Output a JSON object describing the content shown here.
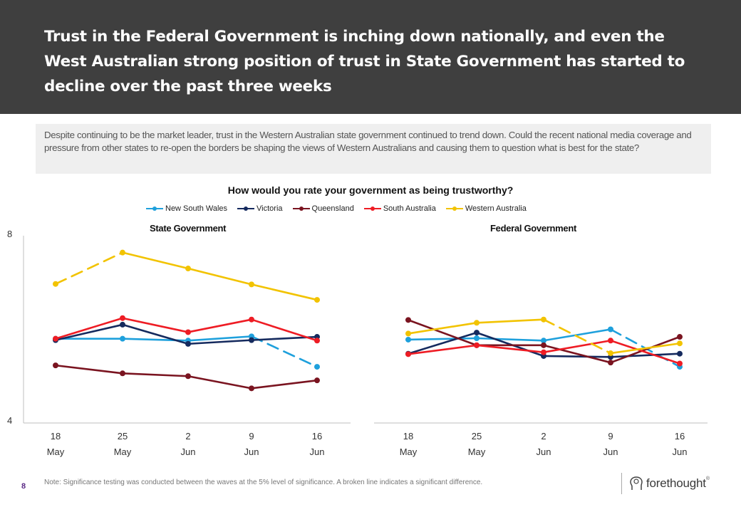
{
  "header": {
    "title": "Trust in the Federal Government is inching down nationally, and even the West Australian strong position of trust in State Government has started to decline over the past three weeks"
  },
  "callout": {
    "text": "Despite continuing to be the market leader, trust in the Western Australian state government continued to trend down.   Could the recent national media coverage and pressure from other states to re-open the borders be shaping the views of Western Australians and causing them to question what is best for the state?"
  },
  "footer": {
    "page_number": "8",
    "note": "Note: Significance testing was conducted between the waves at the 5% level of significance. A broken line indicates a significant difference.",
    "brand": "forethought",
    "brand_mark": "®"
  },
  "chart_data": {
    "type": "line",
    "title": "How would you rate your government as being trustworthy?",
    "ylim": [
      4,
      8
    ],
    "y_ticks": [
      "4",
      "8"
    ],
    "x_ticks": [
      {
        "day": "18",
        "month": "May"
      },
      {
        "day": "25",
        "month": "May"
      },
      {
        "day": "2",
        "month": "Jun"
      },
      {
        "day": "9",
        "month": "Jun"
      },
      {
        "day": "16",
        "month": "Jun"
      }
    ],
    "legend_position": "top-center",
    "series_meta": [
      {
        "name": "New South Wales",
        "color": "#1ea0dc"
      },
      {
        "name": "Victoria",
        "color": "#152a5e"
      },
      {
        "name": "Queensland",
        "color": "#7a1420"
      },
      {
        "name": "South Australia",
        "color": "#ee1c24"
      },
      {
        "name": "Western Australia",
        "color": "#f2c300"
      }
    ],
    "panels": [
      {
        "title": "State Government",
        "series": [
          {
            "name": "New South Wales",
            "values": [
              5.8,
              5.8,
              5.76,
              5.85,
              5.2
            ],
            "dashed": [
              false,
              false,
              false,
              true
            ]
          },
          {
            "name": "Victoria",
            "values": [
              5.77,
              6.1,
              5.69,
              5.77,
              5.84
            ],
            "dashed": [
              false,
              false,
              false,
              false
            ]
          },
          {
            "name": "Queensland",
            "values": [
              5.23,
              5.06,
              5.0,
              4.74,
              4.91
            ],
            "dashed": [
              false,
              false,
              false,
              false
            ]
          },
          {
            "name": "South Australia",
            "values": [
              5.8,
              6.24,
              5.94,
              6.21,
              5.76
            ],
            "dashed": [
              false,
              false,
              false,
              false
            ]
          },
          {
            "name": "Western Australia",
            "values": [
              6.97,
              7.64,
              7.3,
              6.96,
              6.63
            ],
            "dashed": [
              true,
              false,
              false,
              false
            ]
          }
        ]
      },
      {
        "title": "Federal Government",
        "series": [
          {
            "name": "New South Wales",
            "values": [
              5.78,
              5.81,
              5.76,
              6.0,
              5.2
            ],
            "dashed": [
              false,
              false,
              false,
              true
            ]
          },
          {
            "name": "Victoria",
            "values": [
              5.48,
              5.93,
              5.43,
              5.41,
              5.48
            ],
            "dashed": [
              false,
              false,
              false,
              false
            ]
          },
          {
            "name": "Queensland",
            "values": [
              6.2,
              5.66,
              5.66,
              5.29,
              5.84
            ],
            "dashed": [
              false,
              false,
              false,
              false
            ]
          },
          {
            "name": "South Australia",
            "values": [
              5.47,
              5.66,
              5.51,
              5.76,
              5.27
            ],
            "dashed": [
              false,
              false,
              false,
              false
            ]
          },
          {
            "name": "Western Australia",
            "values": [
              5.91,
              6.14,
              6.21,
              5.49,
              5.7
            ],
            "dashed": [
              false,
              false,
              true,
              false
            ]
          }
        ]
      }
    ]
  }
}
